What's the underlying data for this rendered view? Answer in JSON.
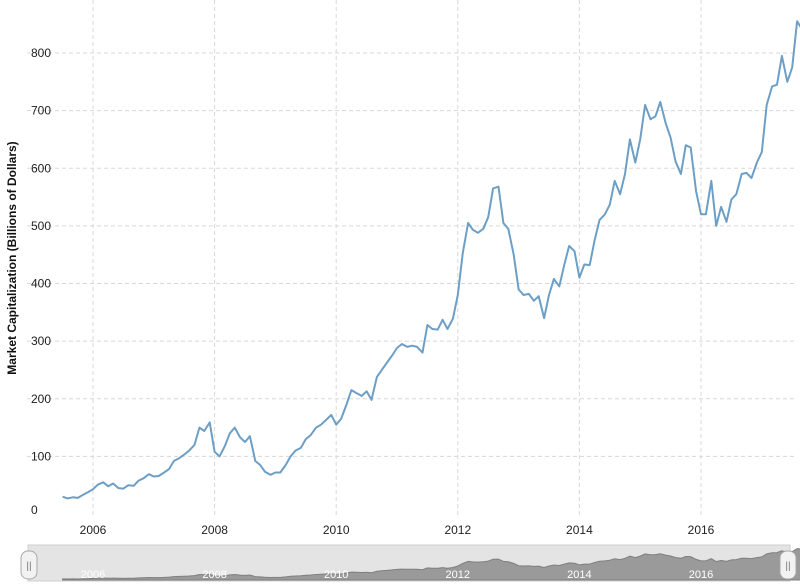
{
  "chart_data": {
    "type": "line",
    "title": "",
    "xlabel": "",
    "ylabel": "Market Capitalization (Billions of Dollars)",
    "ylim": [
      0,
      870
    ],
    "xlim": [
      2005.5,
      2017.75
    ],
    "grid": true,
    "y_ticks": [
      0,
      100,
      200,
      300,
      400,
      500,
      600,
      700,
      800
    ],
    "y_tick_labels": [
      "0",
      "100",
      "200",
      "300",
      "400",
      "500",
      "600",
      "700",
      "800"
    ],
    "x_ticks": [
      2006,
      2008,
      2010,
      2012,
      2014,
      2016
    ],
    "x_tick_labels": [
      "2006",
      "2008",
      "2010",
      "2012",
      "2014",
      "2016"
    ],
    "series": [
      {
        "name": "Market Capitalization",
        "color": "#6d9fc6",
        "x": [
          2005.5,
          2005.58,
          2005.67,
          2005.75,
          2005.83,
          2005.92,
          2006,
          2006.08,
          2006.17,
          2006.25,
          2006.33,
          2006.42,
          2006.5,
          2006.58,
          2006.67,
          2006.75,
          2006.83,
          2006.92,
          2007,
          2007.08,
          2007.17,
          2007.25,
          2007.33,
          2007.42,
          2007.5,
          2007.58,
          2007.67,
          2007.75,
          2007.83,
          2007.92,
          2008,
          2008.08,
          2008.17,
          2008.25,
          2008.33,
          2008.42,
          2008.5,
          2008.58,
          2008.67,
          2008.75,
          2008.83,
          2008.92,
          2009,
          2009.08,
          2009.17,
          2009.25,
          2009.33,
          2009.42,
          2009.5,
          2009.58,
          2009.67,
          2009.75,
          2009.83,
          2009.92,
          2010,
          2010.08,
          2010.17,
          2010.25,
          2010.33,
          2010.42,
          2010.5,
          2010.58,
          2010.67,
          2010.75,
          2010.83,
          2010.92,
          2011,
          2011.08,
          2011.17,
          2011.25,
          2011.33,
          2011.42,
          2011.5,
          2011.58,
          2011.67,
          2011.75,
          2011.83,
          2011.92,
          2012,
          2012.08,
          2012.17,
          2012.25,
          2012.33,
          2012.42,
          2012.5,
          2012.58,
          2012.67,
          2012.75,
          2012.83,
          2012.92,
          2013,
          2013.08,
          2013.17,
          2013.25,
          2013.33,
          2013.42,
          2013.5,
          2013.58,
          2013.67,
          2013.75,
          2013.83,
          2013.92,
          2014,
          2014.08,
          2014.17,
          2014.25,
          2014.33,
          2014.42,
          2014.5,
          2014.58,
          2014.67,
          2014.75,
          2014.83,
          2014.92,
          2015,
          2015.08,
          2015.17,
          2015.25,
          2015.33,
          2015.42,
          2015.5,
          2015.58,
          2015.67,
          2015.75,
          2015.83,
          2015.92,
          2016,
          2016.08,
          2016.17,
          2016.25,
          2016.33,
          2016.42,
          2016.5,
          2016.58,
          2016.67,
          2016.75,
          2016.83,
          2016.92,
          2017,
          2017.08,
          2017.17,
          2017.25,
          2017.33,
          2017.42,
          2017.5,
          2017.58,
          2017.67
        ],
        "values": [
          30,
          27,
          29,
          28,
          33,
          38,
          43,
          51,
          55,
          48,
          53,
          45,
          44,
          50,
          49,
          58,
          62,
          69,
          65,
          66,
          72,
          78,
          92,
          97,
          103,
          110,
          120,
          150,
          144,
          159,
          108,
          100,
          118,
          140,
          150,
          133,
          125,
          135,
          92,
          85,
          73,
          68,
          72,
          72,
          85,
          100,
          110,
          115,
          130,
          137,
          150,
          155,
          163,
          172,
          155,
          165,
          190,
          215,
          210,
          205,
          213,
          198,
          238,
          250,
          262,
          275,
          288,
          295,
          290,
          292,
          290,
          280,
          328,
          321,
          320,
          337,
          321,
          339,
          380,
          452,
          505,
          493,
          488,
          495,
          515,
          565,
          568,
          505,
          495,
          450,
          390,
          380,
          382,
          370,
          378,
          340,
          380,
          408,
          395,
          432,
          465,
          456,
          410,
          433,
          432,
          475,
          510,
          520,
          537,
          578,
          555,
          590,
          650,
          610,
          650,
          710,
          685,
          690,
          715,
          678,
          653,
          612,
          590,
          640,
          636,
          560,
          520,
          520,
          578,
          500,
          533,
          507,
          546,
          555,
          590,
          592,
          583,
          610,
          628,
          710,
          742,
          745,
          795,
          750,
          775,
          855,
          840
        ]
      }
    ],
    "navigator": {
      "x_tick_labels": [
        "2006",
        "2008",
        "2010",
        "2012",
        "2014",
        "2016"
      ],
      "handle_left_glyph": "||",
      "handle_right_glyph": "||"
    }
  }
}
